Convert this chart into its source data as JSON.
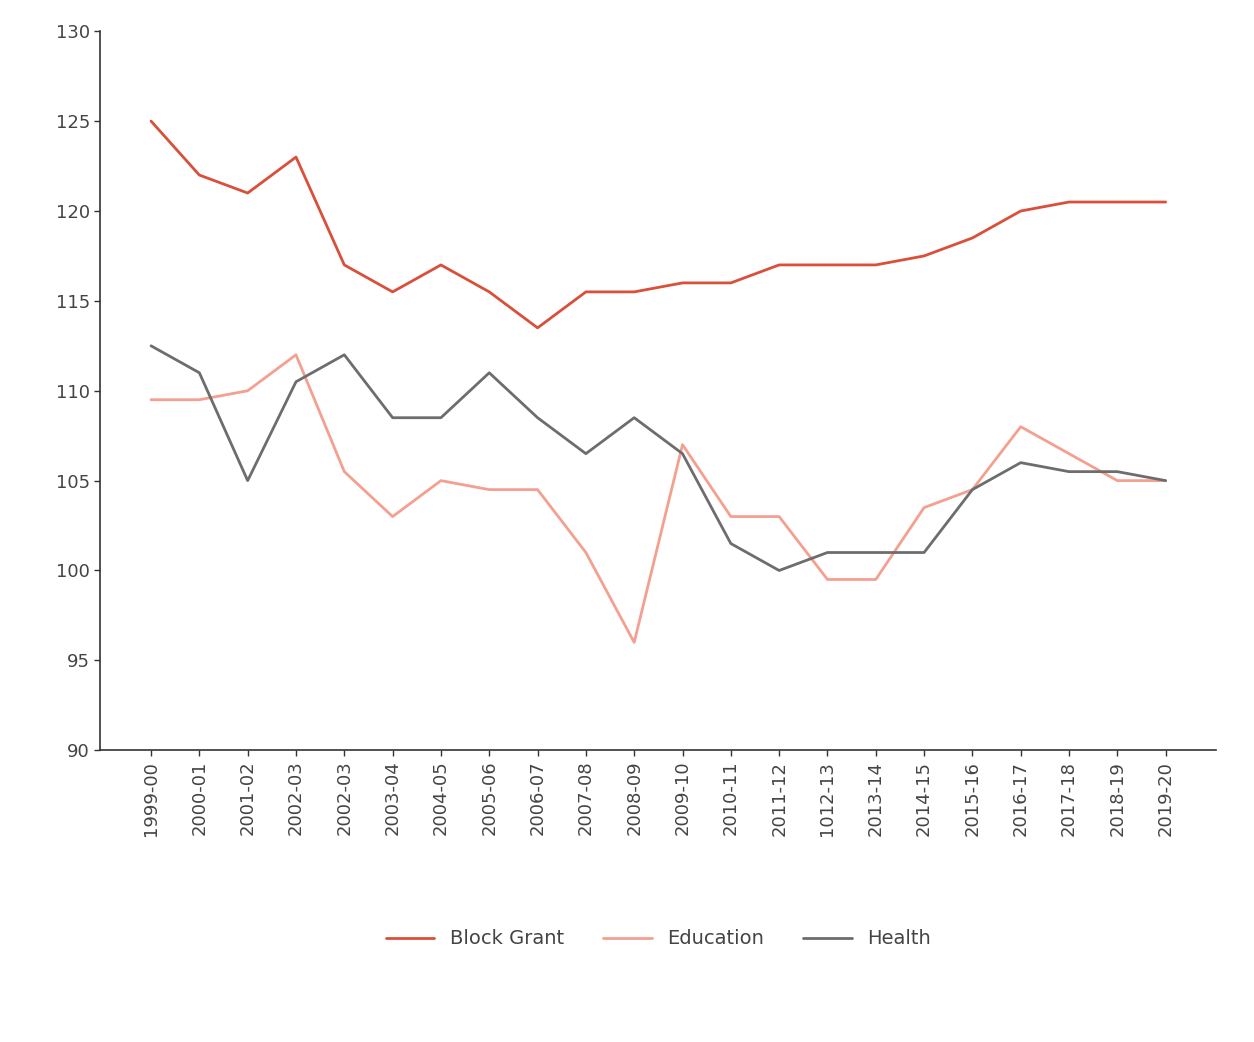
{
  "x_labels": [
    "1999-00",
    "2000-01",
    "2001-02",
    "2002-03",
    "2002-03",
    "2003-04",
    "2004-05",
    "2005-06",
    "2006-07",
    "2007-08",
    "2008-09",
    "2009-10",
    "2010-11",
    "2011-12",
    "1012-13",
    "2013-14",
    "2014-15",
    "2015-16",
    "2016-17",
    "2017-18",
    "2018-19",
    "2019-20"
  ],
  "block_grant": [
    125.0,
    122.0,
    121.0,
    123.0,
    117.0,
    115.5,
    117.0,
    115.5,
    113.5,
    115.5,
    115.5,
    116.0,
    116.0,
    117.0,
    117.0,
    117.0,
    117.5,
    118.5,
    120.0,
    120.5,
    120.5,
    120.5
  ],
  "education": [
    109.5,
    109.5,
    110.0,
    112.0,
    105.5,
    103.0,
    105.0,
    104.5,
    104.5,
    101.0,
    96.0,
    107.0,
    103.0,
    103.0,
    99.5,
    99.5,
    103.5,
    104.5,
    108.0,
    106.5,
    105.0,
    105.0
  ],
  "health": [
    112.5,
    111.0,
    105.0,
    110.5,
    112.0,
    108.5,
    108.5,
    111.0,
    108.5,
    106.5,
    108.5,
    106.5,
    101.5,
    100.0,
    101.0,
    101.0,
    101.0,
    104.5,
    106.0,
    105.5,
    105.5,
    105.0
  ],
  "block_grant_color": "#d94f3a",
  "education_color": "#f4a090",
  "health_color": "#6d6d6d",
  "ylim": [
    90,
    130
  ],
  "yticks": [
    90,
    95,
    100,
    105,
    110,
    115,
    120,
    125,
    130
  ],
  "legend_labels": [
    "Block Grant",
    "Education",
    "Health"
  ],
  "line_width": 2.0,
  "background_color": "#ffffff",
  "tick_label_fontsize": 13,
  "legend_fontsize": 14
}
